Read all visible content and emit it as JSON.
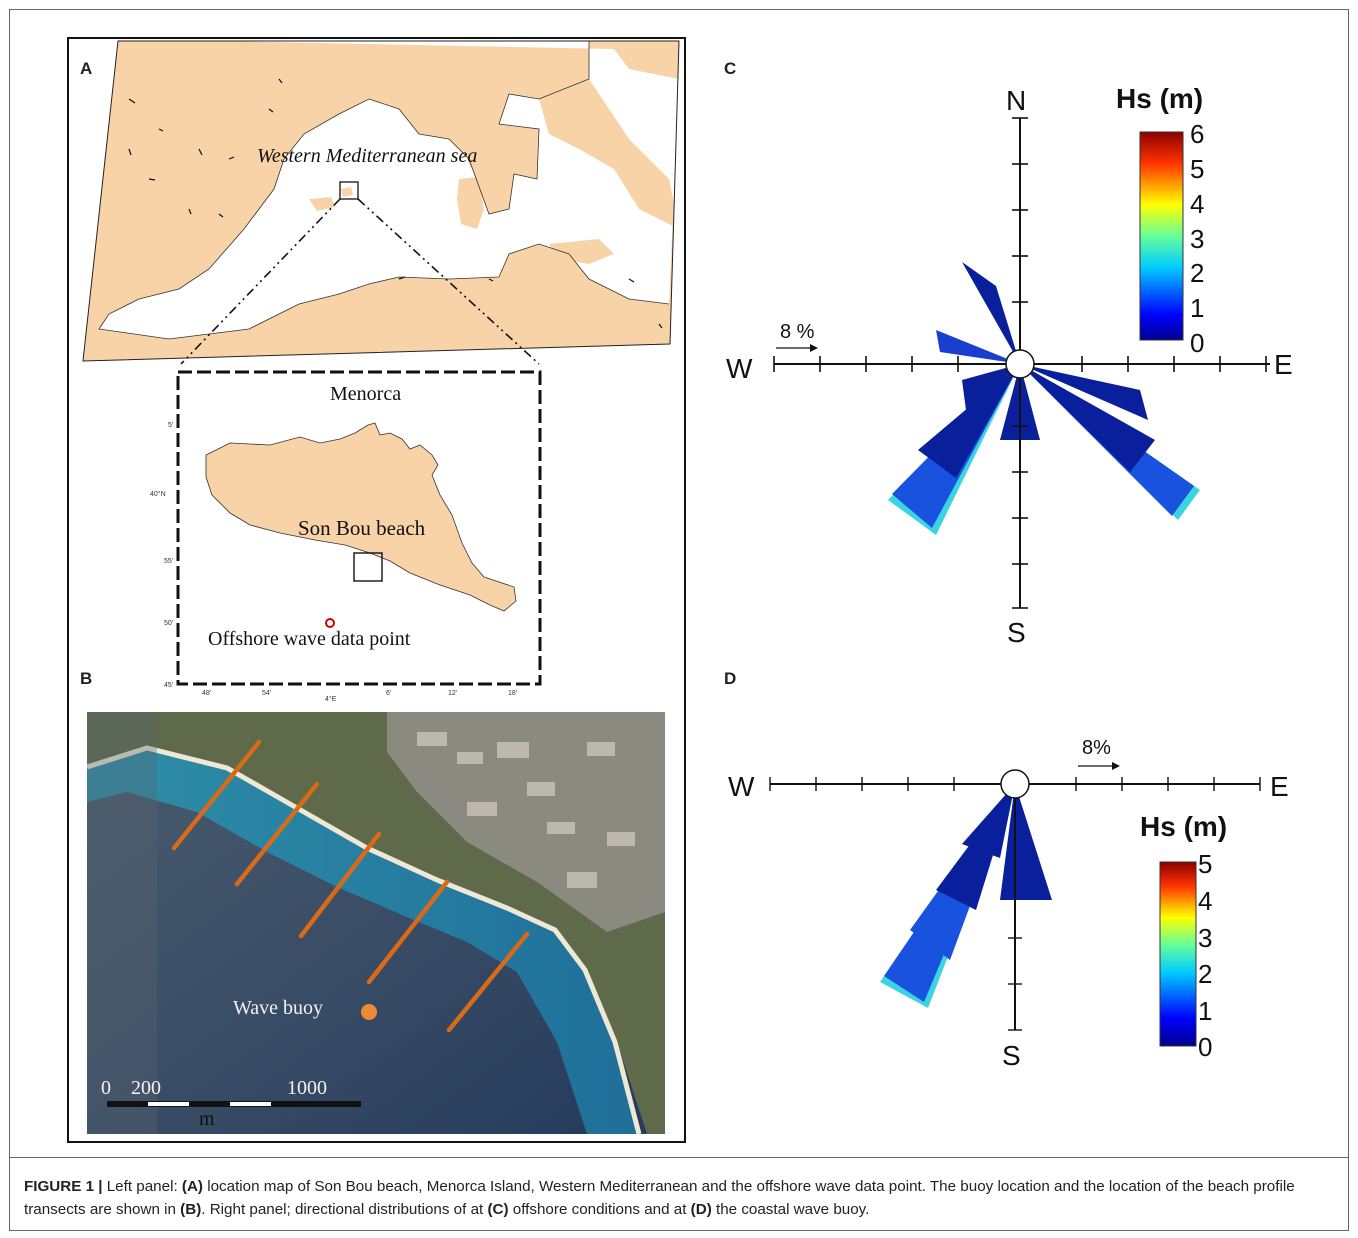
{
  "panels": {
    "a": {
      "label": "A",
      "sea_label": "Western Mediterranean sea",
      "inset_title": "Menorca",
      "beach_label": "Son Bou beach",
      "offshore_label": "Offshore wave data point",
      "lat_ticks": [
        "5'",
        "40°N",
        "55'",
        "50'",
        "45'"
      ],
      "lon_ticks": [
        "48'",
        "54'",
        "4°E",
        "6'",
        "12'",
        "18'"
      ]
    },
    "b": {
      "label": "B",
      "buoy_label": "Wave buoy",
      "scale_ticks": [
        "0",
        "200",
        "1000"
      ],
      "scale_unit": "m"
    },
    "c": {
      "label": "C",
      "compass": {
        "n": "N",
        "s": "S",
        "w": "W",
        "e": "E"
      },
      "scale_label": "8 %",
      "colorbar_title": "Hs (m)",
      "colorbar_ticks": [
        "6",
        "5",
        "4",
        "3",
        "2",
        "1",
        "0"
      ]
    },
    "d": {
      "label": "D",
      "compass": {
        "s": "S",
        "w": "W",
        "e": "E"
      },
      "scale_label": "8%",
      "colorbar_title": "Hs (m)",
      "colorbar_ticks": [
        "5",
        "4",
        "3",
        "2",
        "1",
        "0"
      ]
    }
  },
  "colors": {
    "land": "#f9d3a8",
    "rose_deep": "#0a1f9c",
    "rose_mid": "#1a52e0",
    "rose_cyan": "#3cd4e0",
    "transect": "#d96a18",
    "buoy": "#ee8a35",
    "offshore_marker": "#cc0000"
  },
  "caption": {
    "lead": "FIGURE 1 |",
    "t1": " Left panel: ",
    "b1": "(A)",
    "t2": " location map of Son Bou beach, Menorca Island, Western Mediterranean and the offshore wave data point. The buoy location and the location of the beach profile transects are shown in ",
    "b2": "(B)",
    "t3": ". Right panel; directional distributions of at ",
    "b3": "(C)",
    "t4": " offshore conditions and at ",
    "b4": "(D)",
    "t5": " the coastal wave buoy."
  }
}
